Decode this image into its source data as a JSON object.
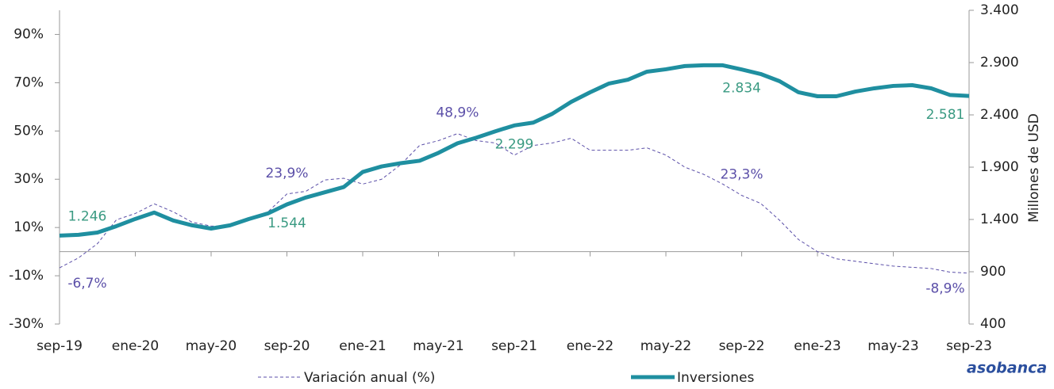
{
  "chart_data": {
    "type": "line",
    "categories": [
      "sep-19",
      null,
      null,
      null,
      "ene-20",
      null,
      null,
      null,
      "may-20",
      null,
      null,
      null,
      "sep-20",
      null,
      null,
      null,
      "ene-21",
      null,
      null,
      null,
      "may-21",
      null,
      null,
      null,
      "sep-21",
      null,
      null,
      null,
      "ene-22",
      null,
      null,
      null,
      "may-22",
      null,
      null,
      null,
      "sep-22",
      null,
      null,
      null,
      "ene-23",
      null,
      null,
      null,
      "may-23",
      null,
      null,
      null,
      "sep-23"
    ],
    "ylim": [
      -30,
      100
    ],
    "yticks": [
      {
        "value": -30,
        "label": "-30%"
      },
      {
        "value": -10,
        "label": "-10%"
      },
      {
        "value": 10,
        "label": "10%"
      },
      {
        "value": 30,
        "label": "30%"
      },
      {
        "value": 50,
        "label": "50%"
      },
      {
        "value": 70,
        "label": "70%"
      },
      {
        "value": 90,
        "label": "90%"
      }
    ],
    "y2lim": [
      400,
      3400
    ],
    "y2ticks": [
      {
        "value": 400,
        "label": "400"
      },
      {
        "value": 900,
        "label": "900"
      },
      {
        "value": 1400,
        "label": "1.400"
      },
      {
        "value": 1900,
        "label": "1.900"
      },
      {
        "value": 2400,
        "label": "2.400"
      },
      {
        "value": 2900,
        "label": "2.900"
      },
      {
        "value": 3400,
        "label": "3.400"
      }
    ],
    "y2_label": "Millones de USD",
    "series": [
      {
        "name": "Variación anual (%)",
        "color": "#5b4fa8",
        "style": "dashed",
        "axis": "y",
        "values": [
          -6.7,
          -2.6,
          3.3,
          13.2,
          15.8,
          19.8,
          16.5,
          12.2,
          10.6,
          10.6,
          13.9,
          16.5,
          23.9,
          25,
          29.7,
          30.4,
          28,
          30,
          36,
          44,
          46,
          48.9,
          46,
          45,
          40,
          44,
          45,
          47,
          42,
          42,
          42,
          43,
          40,
          35,
          32,
          28,
          23.3,
          20,
          13,
          5,
          0,
          -3,
          -4,
          -5,
          -6,
          -6.5,
          -7,
          -8.5,
          -8.9
        ],
        "value_labels": [
          "-6,7%",
          null,
          null,
          null,
          null,
          null,
          null,
          null,
          null,
          null,
          null,
          null,
          "23,9%",
          null,
          null,
          null,
          null,
          null,
          null,
          null,
          null,
          "48,9%",
          null,
          null,
          null,
          null,
          null,
          null,
          null,
          null,
          null,
          null,
          null,
          null,
          null,
          null,
          "23,3%",
          null,
          null,
          null,
          null,
          null,
          null,
          null,
          null,
          null,
          null,
          null,
          "-8,9%"
        ]
      },
      {
        "name": "Inversiones",
        "color": "#1f8fa0",
        "style": "solid",
        "axis": "y2",
        "values": [
          1246,
          1253,
          1275,
          1336,
          1405,
          1466,
          1390,
          1344,
          1313,
          1344,
          1405,
          1458,
          1544,
          1610,
          1660,
          1710,
          1854,
          1907,
          1938,
          1961,
          2037,
          2128,
          2182,
          2243,
          2299,
          2326,
          2410,
          2524,
          2616,
          2700,
          2737,
          2813,
          2836,
          2867,
          2874,
          2874,
          2834,
          2791,
          2722,
          2616,
          2578,
          2578,
          2623,
          2654,
          2677,
          2684,
          2654,
          2590,
          2581
        ],
        "value_labels": [
          "1.246",
          null,
          null,
          null,
          null,
          null,
          null,
          null,
          null,
          null,
          null,
          null,
          "1.544",
          null,
          null,
          null,
          null,
          null,
          null,
          null,
          null,
          null,
          null,
          null,
          "2.299",
          null,
          null,
          null,
          null,
          null,
          null,
          null,
          null,
          null,
          null,
          null,
          "2.834",
          null,
          null,
          null,
          null,
          null,
          null,
          null,
          null,
          null,
          null,
          null,
          "2.581"
        ]
      }
    ],
    "logo": "asobanca"
  }
}
